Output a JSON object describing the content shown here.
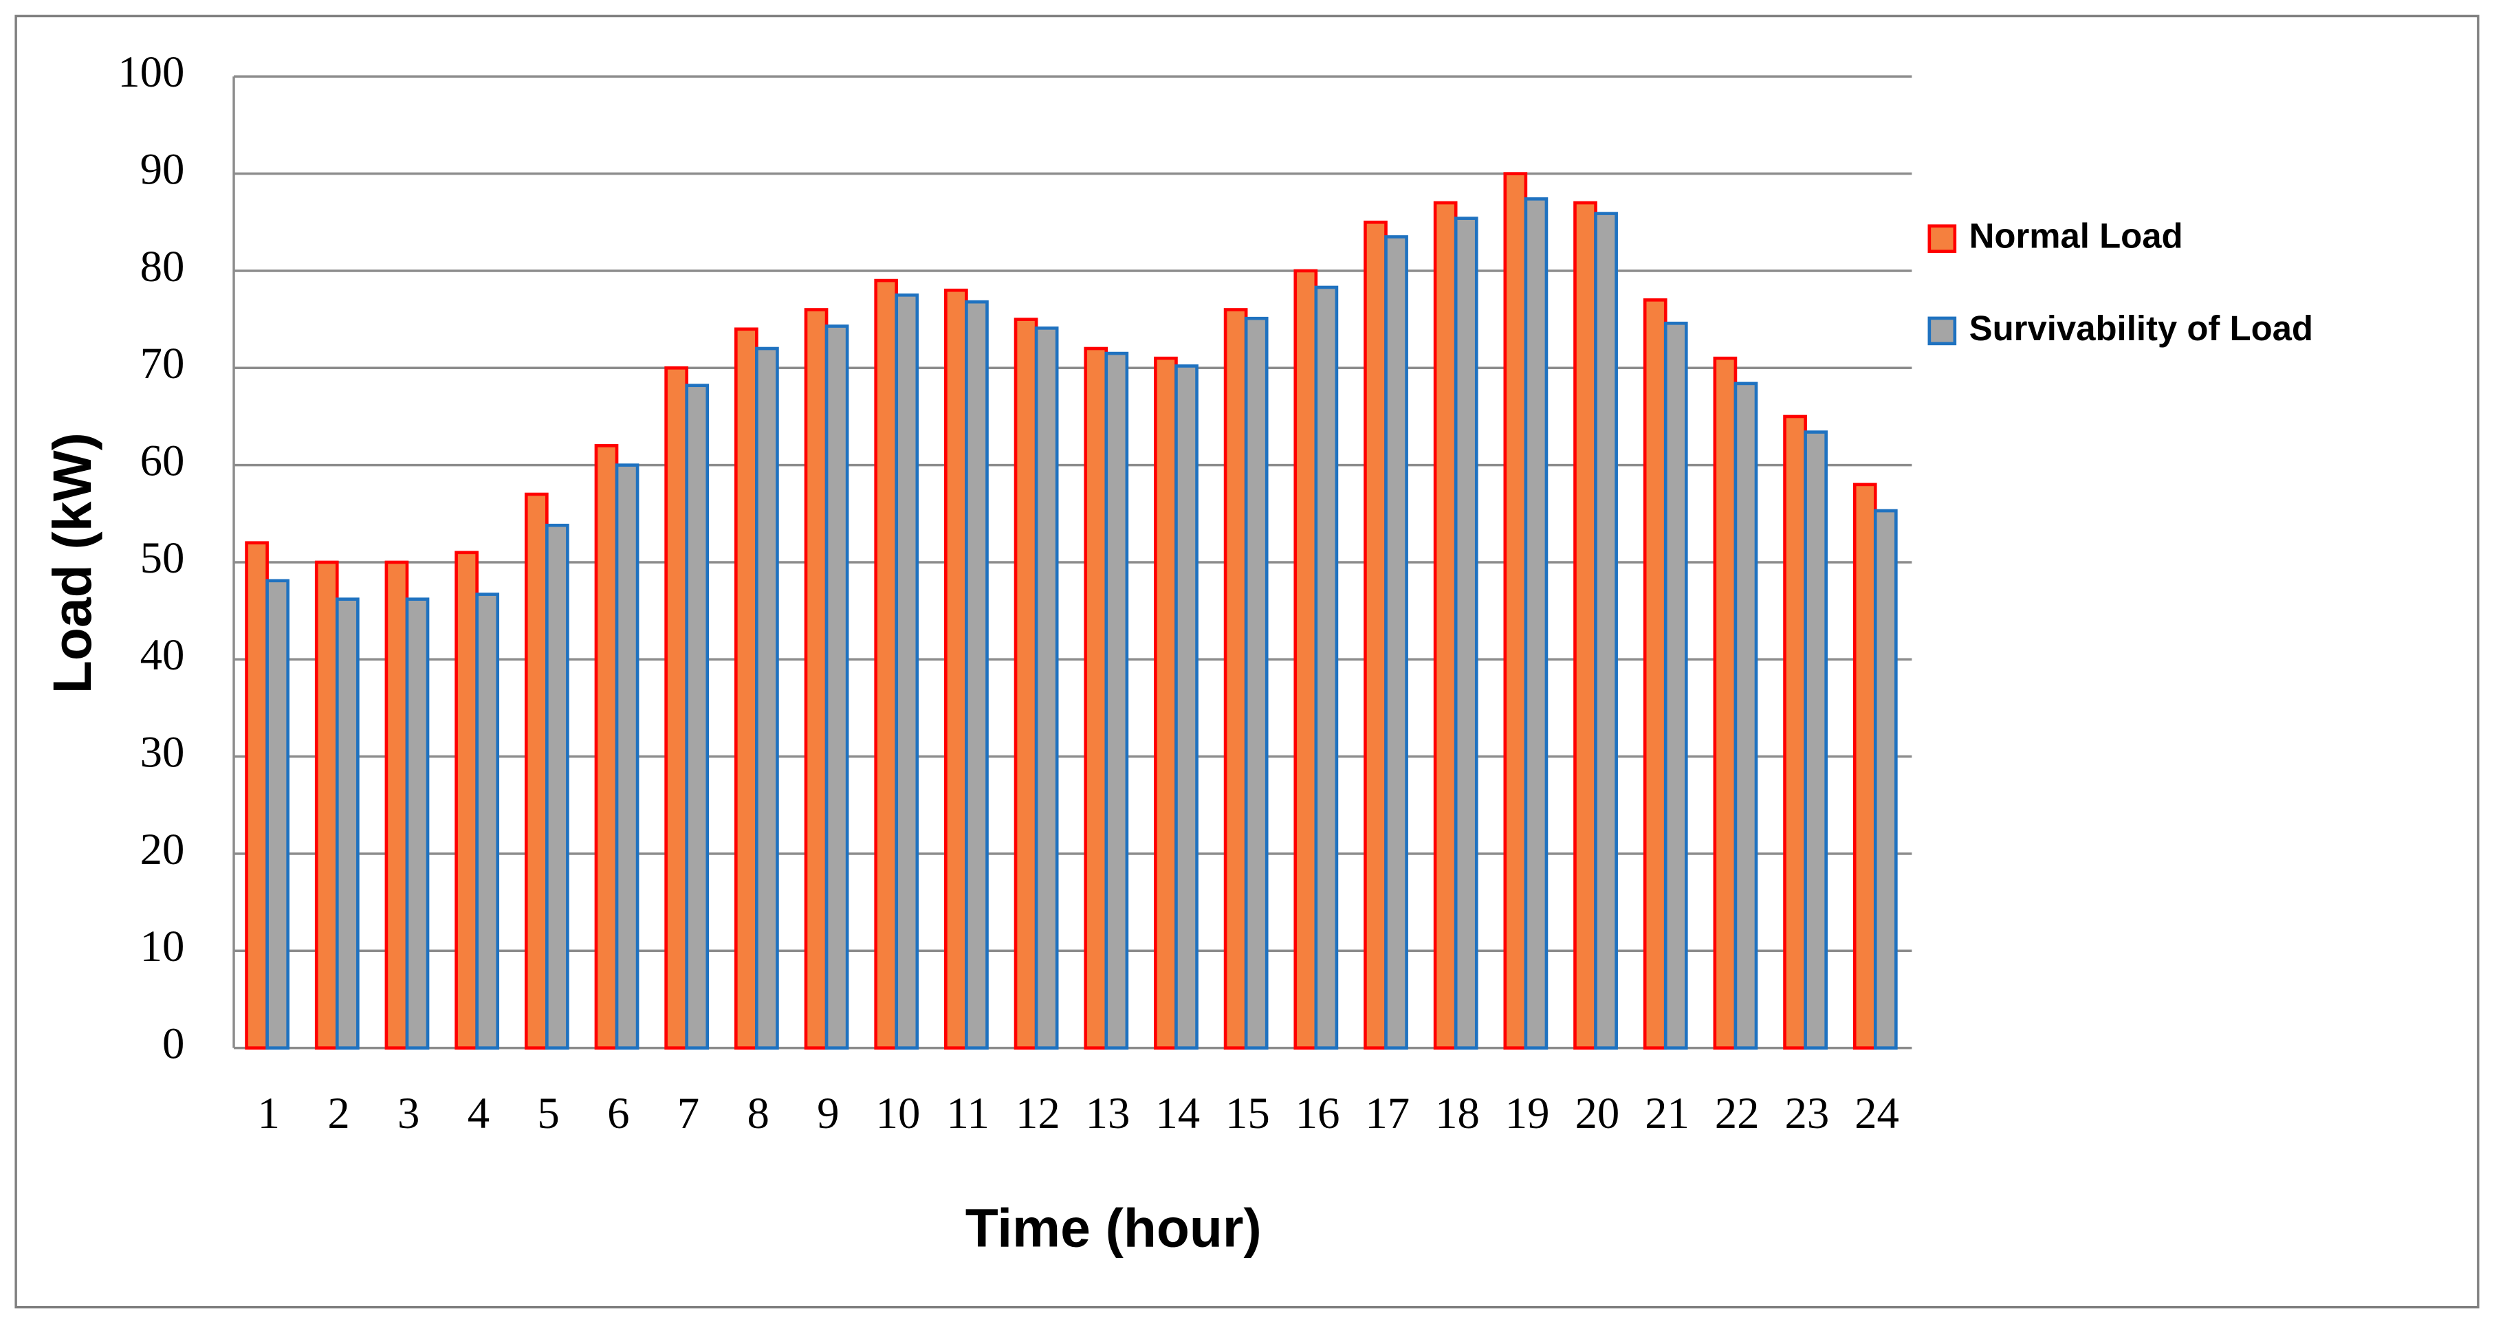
{
  "chart_data": {
    "type": "bar",
    "x_label": "Time (hour)",
    "y_label": "Load (kW)",
    "categories": [
      1,
      2,
      3,
      4,
      5,
      6,
      7,
      8,
      9,
      10,
      11,
      12,
      13,
      14,
      15,
      16,
      17,
      18,
      19,
      20,
      21,
      22,
      23,
      24
    ],
    "series": [
      {
        "name": "Normal Load",
        "color": "#f5803e",
        "edge": "#ff0000",
        "values": [
          52,
          50,
          50,
          51,
          57,
          62,
          70,
          74,
          76,
          79,
          78,
          75,
          72,
          71,
          76,
          80,
          85,
          87,
          90,
          87,
          77,
          71,
          65,
          58
        ]
      },
      {
        "name": "Survivability of Load",
        "color": "#a5a5a5",
        "edge": "#1f72c0",
        "values": [
          48.1,
          46.2,
          46.2,
          46.7,
          53.8,
          60,
          68.2,
          72,
          74.3,
          77.5,
          76.8,
          74.1,
          71.5,
          70.2,
          75.1,
          78.3,
          83.5,
          85.4,
          87.4,
          85.9,
          74.6,
          68.4,
          63.4,
          55.3
        ]
      }
    ],
    "ylim": [
      0,
      100
    ],
    "yticks": [
      0,
      10,
      20,
      30,
      40,
      50,
      60,
      70,
      80,
      90,
      100
    ],
    "grid": true,
    "legend": "right"
  }
}
